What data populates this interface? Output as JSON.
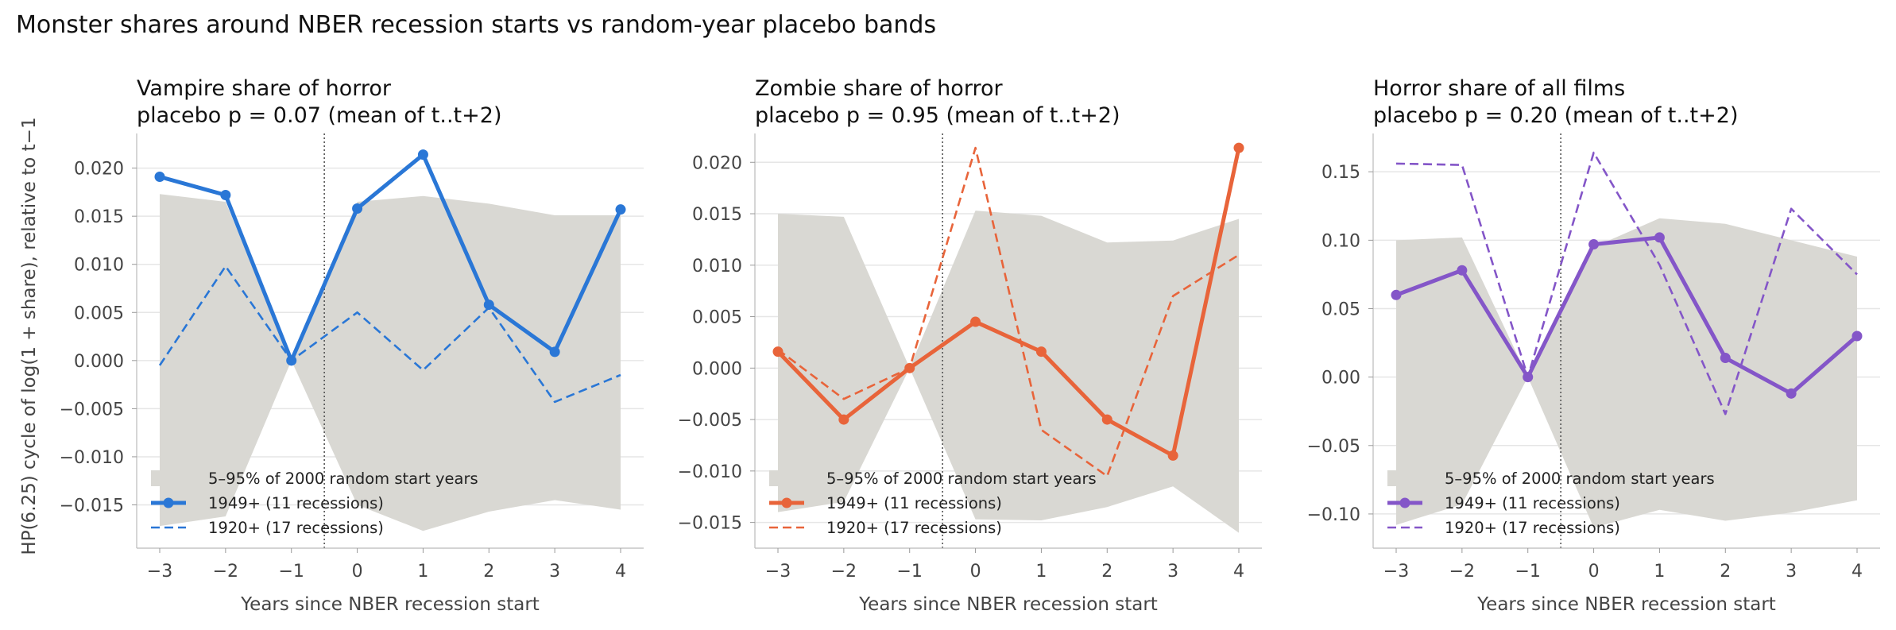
{
  "suptitle": "Monster shares around NBER recession starts vs random-year placebo bands",
  "shared_ylabel": "HP(6.25) cycle of log(1 + share), relative to t−1",
  "colors": {
    "band": "#d9d8d3",
    "vampire": "#2a77d6",
    "zombie": "#e8643a",
    "horror": "#8456c8"
  },
  "chart_data": [
    {
      "type": "line",
      "title_line1": "Vampire share of horror",
      "title_line2": "placebo p = 0.07 (mean of t..t+2)",
      "xlabel": "Years since NBER recession start",
      "x": [
        -3,
        -2,
        -1,
        0,
        1,
        2,
        3,
        4
      ],
      "xlim": [
        -3.35,
        4.35
      ],
      "ylim": [
        -0.0195,
        0.0236
      ],
      "yticks": [
        -0.015,
        -0.01,
        -0.005,
        0.0,
        0.005,
        0.01,
        0.015,
        0.02
      ],
      "ytick_labels": [
        "−0.015",
        "−0.010",
        "−0.005",
        "0.000",
        "0.005",
        "0.010",
        "0.015",
        "0.020"
      ],
      "event_line_x": -0.5,
      "band": {
        "name": "5–95% of 2000 random start years",
        "lower": [
          -0.0172,
          -0.0162,
          0.0,
          -0.015,
          -0.0177,
          -0.0157,
          -0.0145,
          -0.0155
        ],
        "upper": [
          0.0173,
          0.0165,
          0.0,
          0.0165,
          0.0171,
          0.0163,
          0.0151,
          0.0151
        ]
      },
      "series": [
        {
          "name": "1949+ (11 recessions)",
          "style": "solid",
          "values": [
            0.0191,
            0.0172,
            0.0,
            0.0158,
            0.0214,
            0.0058,
            0.0009,
            0.0157
          ]
        },
        {
          "name": "1920+ (17 recessions)",
          "style": "dashed",
          "values": [
            -0.0005,
            0.0098,
            0.0,
            0.005,
            -0.001,
            0.0055,
            -0.0043,
            -0.0015
          ]
        }
      ],
      "legend_loc": "lower left",
      "color_key": "vampire"
    },
    {
      "type": "line",
      "title_line1": "Zombie share of horror",
      "title_line2": "placebo p = 0.95 (mean of t..t+2)",
      "xlabel": "Years since NBER recession start",
      "x": [
        -3,
        -2,
        -1,
        0,
        1,
        2,
        3,
        4
      ],
      "xlim": [
        -3.35,
        4.35
      ],
      "ylim": [
        -0.0175,
        0.0228
      ],
      "yticks": [
        -0.015,
        -0.01,
        -0.005,
        0.0,
        0.005,
        0.01,
        0.015,
        0.02
      ],
      "ytick_labels": [
        "−0.015",
        "−0.010",
        "−0.005",
        "0.000",
        "0.005",
        "0.010",
        "0.015",
        "0.020"
      ],
      "event_line_x": -0.5,
      "band": {
        "name": "5–95% of 2000 random start years",
        "lower": [
          -0.014,
          -0.013,
          0.0,
          -0.0147,
          -0.0148,
          -0.0135,
          -0.0115,
          -0.016
        ],
        "upper": [
          0.015,
          0.0147,
          0.0,
          0.0153,
          0.0148,
          0.0122,
          0.0124,
          0.0145
        ]
      },
      "series": [
        {
          "name": "1949+ (11 recessions)",
          "style": "solid",
          "values": [
            0.0016,
            -0.005,
            0.0,
            0.0045,
            0.0016,
            -0.005,
            -0.0085,
            0.0214
          ]
        },
        {
          "name": "1920+ (17 recessions)",
          "style": "dashed",
          "values": [
            0.0018,
            -0.003,
            0.0,
            0.0214,
            -0.006,
            -0.0105,
            0.007,
            0.011
          ]
        }
      ],
      "legend_loc": "lower left",
      "color_key": "zombie"
    },
    {
      "type": "line",
      "title_line1": "Horror share of all films",
      "title_line2": "placebo p = 0.20 (mean of t..t+2)",
      "xlabel": "Years since NBER recession start",
      "x": [
        -3,
        -2,
        -1,
        0,
        1,
        2,
        3,
        4
      ],
      "xlim": [
        -3.35,
        4.35
      ],
      "ylim": [
        -0.125,
        0.178
      ],
      "yticks": [
        -0.1,
        -0.05,
        0.0,
        0.05,
        0.1,
        0.15
      ],
      "ytick_labels": [
        "−0.10",
        "−0.05",
        "0.00",
        "0.05",
        "0.10",
        "0.15"
      ],
      "event_line_x": -0.5,
      "band": {
        "name": "5–95% of 2000 random start years",
        "lower": [
          -0.108,
          -0.093,
          0.0,
          -0.11,
          -0.097,
          -0.105,
          -0.099,
          -0.09
        ],
        "upper": [
          0.1,
          0.102,
          0.0,
          0.095,
          0.116,
          0.112,
          0.1,
          0.088
        ]
      },
      "series": [
        {
          "name": "1949+ (11 recessions)",
          "style": "solid",
          "values": [
            0.06,
            0.078,
            0.0,
            0.097,
            0.102,
            0.014,
            -0.012,
            0.03
          ]
        },
        {
          "name": "1920+ (17 recessions)",
          "style": "dashed",
          "values": [
            0.156,
            0.155,
            0.0,
            0.164,
            0.082,
            -0.027,
            0.123,
            0.075
          ]
        }
      ],
      "legend_loc": "lower left",
      "color_key": "horror"
    }
  ]
}
